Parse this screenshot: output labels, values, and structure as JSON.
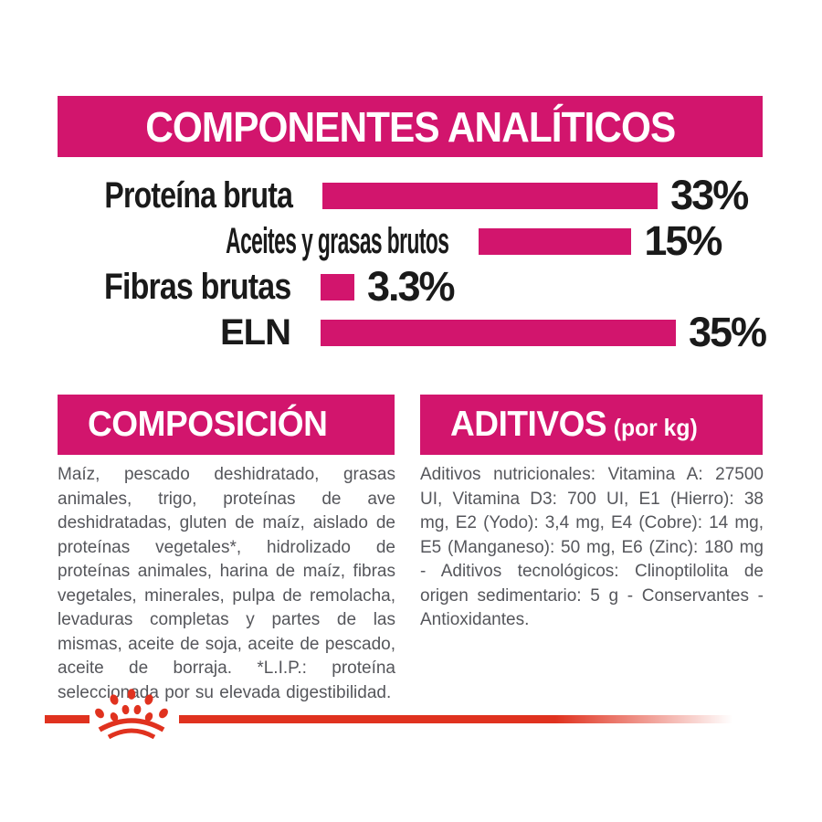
{
  "brand": {
    "accent_magenta": "#D2156D",
    "accent_red": "#E0321F",
    "logo": "royal-canin-crown-icon"
  },
  "analytical_header": {
    "title": "COMPONENTES ANALÍTICOS"
  },
  "chart_data": {
    "type": "bar",
    "orientation": "horizontal",
    "title": "COMPONENTES ANALÍTICOS",
    "categories": [
      "Proteína bruta",
      "Aceites y grasas brutos",
      "Fibras brutas",
      "ELN"
    ],
    "values": [
      33,
      15,
      3.3,
      35
    ],
    "value_labels": [
      "33%",
      "15%",
      "3.3%",
      "35%"
    ],
    "xlim": [
      0,
      35
    ],
    "bar_color": "#D2156D",
    "grid": false,
    "legend": false,
    "value_label_position": "end-of-bar"
  },
  "composition": {
    "title": "COMPOSICIÓN",
    "body": "Maíz, pescado deshidratado, grasas animales, trigo, proteínas de ave deshidratadas, gluten de maíz, aislado de proteínas vegetales*, hidrolizado de proteínas animales, harina de maíz, fibras vegetales, minerales, pulpa de remolacha, levaduras completas y partes de las mismas, aceite de soja, aceite de pescado, aceite de borraja. *L.I.P.: proteína seleccionada por su elevada digestibilidad."
  },
  "additives": {
    "title": "ADITIVOS",
    "title_suffix": "(por kg)",
    "body": "Aditivos nutricionales: Vitamina A: 27500 UI, Vitamina D3: 700 UI, E1 (Hierro): 38 mg, E2 (Yodo): 3,4 mg, E4 (Cobre): 14 mg, E5 (Manganeso): 50 mg, E6 (Zinc): 180 mg - Aditivos tecnológicos: Clinoptilolita de origen sedimentario: 5 g - Conservantes - Antioxidantes."
  }
}
